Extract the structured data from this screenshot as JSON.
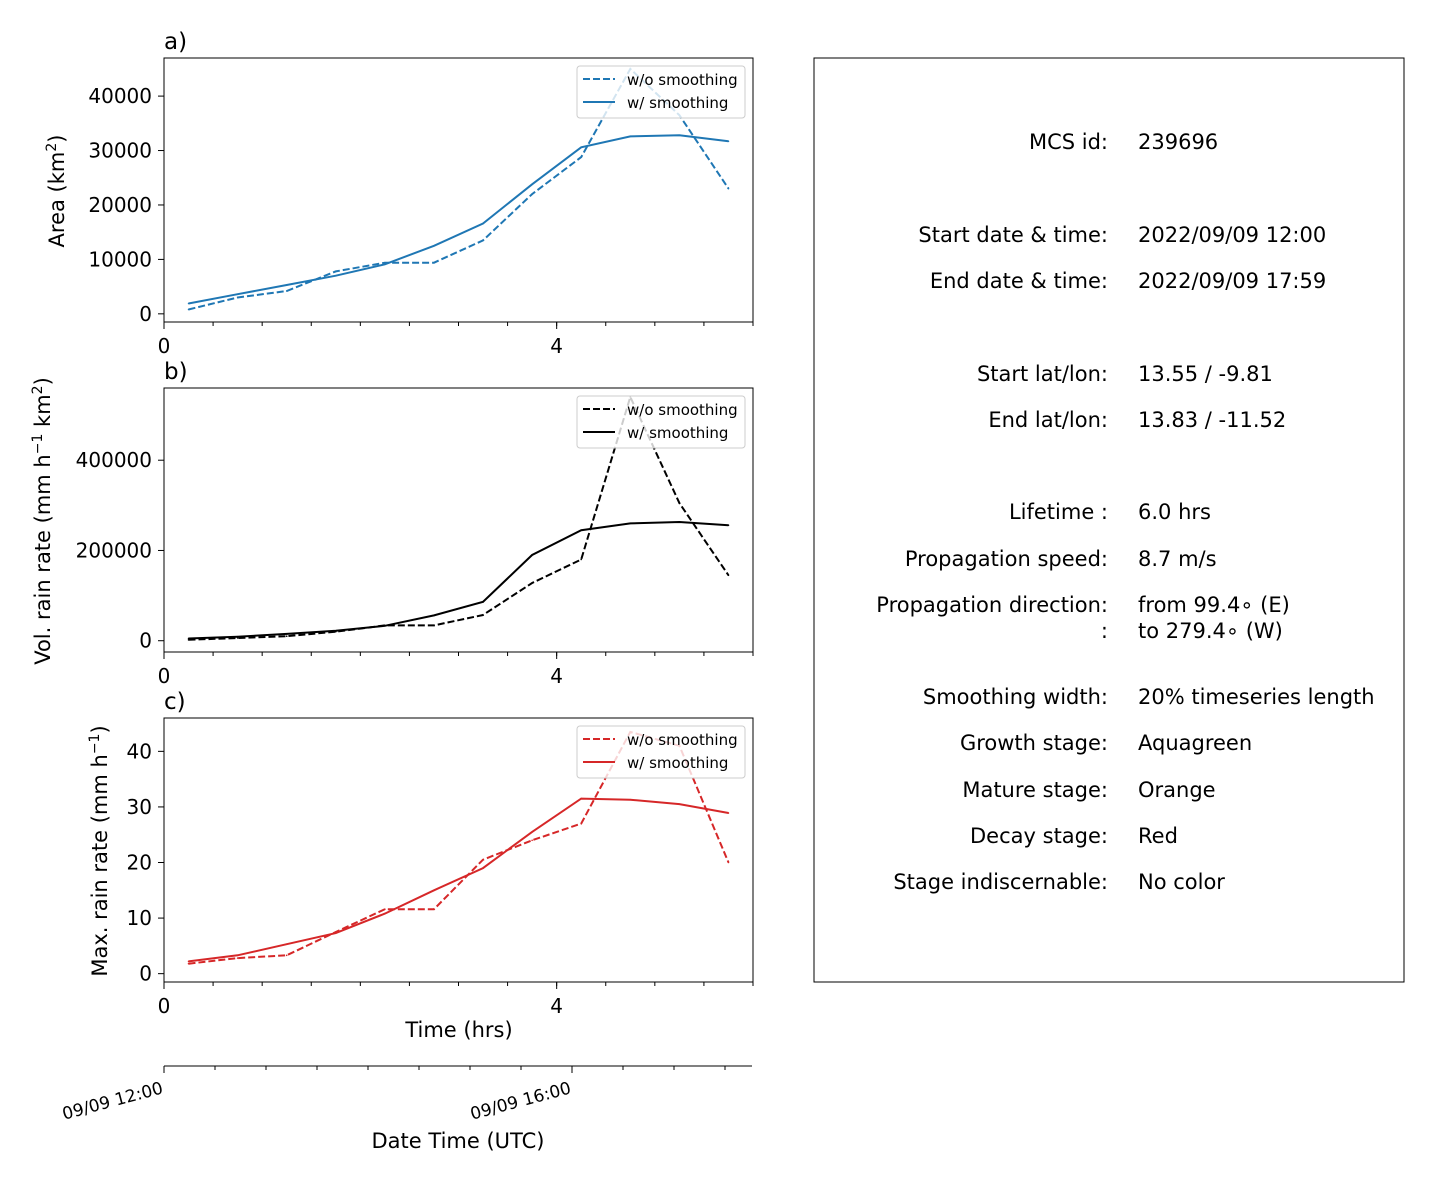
{
  "panels": [
    {
      "label": "a)",
      "ylabel_main": "Area  (km",
      "ylabel_sup": "2",
      "ylabel_tail": ")",
      "color": "#1f77b4",
      "ylim": [
        -1500,
        47000
      ],
      "yticks": [
        0,
        10000,
        20000,
        30000,
        40000
      ],
      "ytick_labels": [
        "0",
        "10000",
        "20000",
        "30000",
        "40000"
      ]
    },
    {
      "label": "b)",
      "ylabel_main": "Vol. rain rate (mm h",
      "ylabel_sup": "−1",
      "ylabel_mid": " km",
      "ylabel_sup2": "2",
      "ylabel_tail": ")",
      "color": "#000000",
      "ylim": [
        -25000,
        560000
      ],
      "yticks": [
        0,
        200000,
        400000
      ],
      "ytick_labels": [
        "0",
        "200000",
        "400000"
      ]
    },
    {
      "label": "c)",
      "ylabel_main": "Max. rain rate  (mm h",
      "ylabel_sup": "−1",
      "ylabel_tail": ")",
      "color": "#d62728",
      "ylim": [
        -1.5,
        46
      ],
      "yticks": [
        0,
        10,
        20,
        30,
        40
      ],
      "ytick_labels": [
        "0",
        "10",
        "20",
        "30",
        "40"
      ]
    }
  ],
  "legend": {
    "wo_label": "w/o smoothing",
    "w_label": "w/ smoothing"
  },
  "xaxis": {
    "xlim": [
      0,
      6.0
    ],
    "major_ticks": [
      0,
      4
    ],
    "major_labels": [
      "0",
      "4"
    ],
    "minor_step": 0.5,
    "xlabel": "Time (hrs)"
  },
  "date_axis": {
    "labels": [
      "09/09 12:00",
      "09/09 16:00"
    ],
    "label_hours": [
      0,
      4
    ],
    "xlabel": "Date Time (UTC)"
  },
  "chart_data": [
    {
      "type": "line",
      "panel": "a)",
      "ylabel": "Area (km2)",
      "xlabel": "Time (hrs)",
      "x": [
        0.25,
        0.75,
        1.25,
        1.75,
        2.25,
        2.75,
        3.25,
        3.75,
        4.25,
        4.75,
        5.25,
        5.75
      ],
      "series": [
        {
          "name": "w/o smoothing",
          "style": "dashed",
          "values": [
            800,
            3000,
            4200,
            7800,
            9400,
            9400,
            13500,
            22000,
            28800,
            45000,
            36500,
            23000
          ]
        },
        {
          "name": "w/ smoothing",
          "style": "solid",
          "values": [
            1900,
            3600,
            5300,
            7000,
            9100,
            12500,
            16600,
            23800,
            30600,
            32600,
            32800,
            31700
          ]
        }
      ],
      "ylim": [
        -1500,
        47000
      ],
      "legend_position": "upper right"
    },
    {
      "type": "line",
      "panel": "b)",
      "ylabel": "Vol. rain rate (mm h-1 km2)",
      "xlabel": "Time (hrs)",
      "x": [
        0.25,
        0.75,
        1.25,
        1.75,
        2.25,
        2.75,
        3.25,
        3.75,
        4.25,
        4.75,
        5.25,
        5.75
      ],
      "series": [
        {
          "name": "w/o smoothing",
          "style": "dashed",
          "values": [
            2000,
            6000,
            10000,
            20000,
            34000,
            34000,
            57000,
            128000,
            180000,
            540000,
            305000,
            145000
          ]
        },
        {
          "name": "w/ smoothing",
          "style": "solid",
          "values": [
            5000,
            9000,
            15000,
            22000,
            33000,
            56000,
            86000,
            190000,
            245000,
            260000,
            263000,
            256000
          ]
        }
      ],
      "ylim": [
        -25000,
        560000
      ],
      "legend_position": "upper right"
    },
    {
      "type": "line",
      "panel": "c)",
      "ylabel": "Max. rain rate (mm h-1)",
      "xlabel": "Time (hrs)",
      "x": [
        0.25,
        0.75,
        1.25,
        1.75,
        2.25,
        2.75,
        3.25,
        3.75,
        4.25,
        4.75,
        5.25,
        5.75
      ],
      "series": [
        {
          "name": "w/o smoothing",
          "style": "dashed",
          "values": [
            1.8,
            2.8,
            3.3,
            7.5,
            11.6,
            11.6,
            20.5,
            24.0,
            27.0,
            43.5,
            41.0,
            20.0
          ]
        },
        {
          "name": "w/ smoothing",
          "style": "solid",
          "values": [
            2.2,
            3.3,
            5.3,
            7.3,
            10.8,
            15.0,
            19.0,
            25.5,
            31.5,
            31.3,
            30.5,
            28.9
          ]
        }
      ],
      "ylim": [
        -1.5,
        46
      ],
      "legend_position": "upper right"
    }
  ],
  "info": {
    "rows": [
      {
        "label": "MCS id:",
        "value": "239696"
      },
      {
        "label": "Start date & time:",
        "value": "2022/09/09 12:00"
      },
      {
        "label": "End date & time:",
        "value": "2022/09/09 17:59"
      },
      {
        "label": "Start lat/lon:",
        "value": "13.55 / -9.81"
      },
      {
        "label": "End lat/lon:",
        "value": "13.83 / -11.52"
      },
      {
        "label": "Lifetime :",
        "value": "6.0 hrs"
      },
      {
        "label": "Propagation speed:",
        "value": "8.7 m/s"
      },
      {
        "label": "Propagation direction:",
        "value": "from  99.4∘ (E)"
      },
      {
        "label": ":",
        "value": "to   279.4∘ (W)"
      },
      {
        "label": "Smoothing width:",
        "value": "20% timeseries length"
      },
      {
        "label": "Growth stage:",
        "value": "Aquagreen"
      },
      {
        "label": "Mature stage:",
        "value": "Orange"
      },
      {
        "label": "Decay stage:",
        "value": "Red"
      },
      {
        "label": "Stage indiscernable:",
        "value": "No color"
      }
    ]
  }
}
